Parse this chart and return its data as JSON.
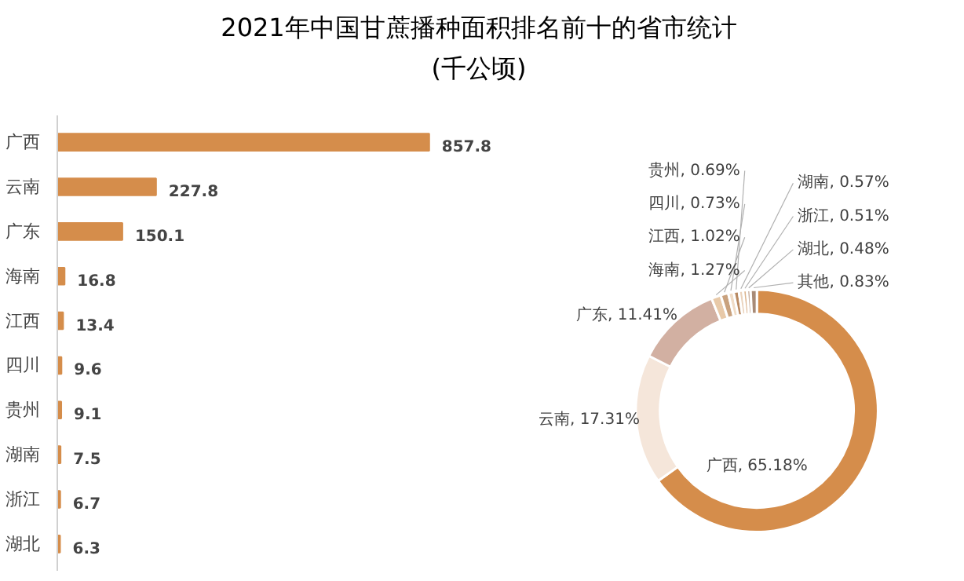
{
  "chart_data": [
    {
      "type": "bar",
      "title": "2021年中国甘蔗播种面积排名前十的省市统计",
      "subtitle": "(千公顷)",
      "orientation": "horizontal",
      "categories": [
        "广西",
        "云南",
        "广东",
        "海南",
        "江西",
        "四川",
        "贵州",
        "湖南",
        "浙江",
        "湖北"
      ],
      "values": [
        857.8,
        227.8,
        150.1,
        16.8,
        13.4,
        9.6,
        9.1,
        7.5,
        6.7,
        6.3
      ],
      "color": "#d58d4b",
      "data_labels": true
    },
    {
      "type": "donut",
      "categories": [
        "广西",
        "云南",
        "广东",
        "海南",
        "江西",
        "四川",
        "贵州",
        "湖南",
        "浙江",
        "湖北",
        "其他"
      ],
      "values": [
        65.18,
        17.31,
        11.41,
        1.27,
        1.02,
        0.73,
        0.69,
        0.57,
        0.51,
        0.48,
        0.83
      ],
      "colors": [
        "#d58d4b",
        "#f5e6da",
        "#d2b0a2",
        "#e8c9a8",
        "#c9a27e",
        "#f0dcc6",
        "#b98a62",
        "#ead2bb",
        "#dcb48e",
        "#c8b0a0",
        "#a88a76"
      ],
      "value_labels": [
        "65.18%",
        "17.31%",
        "11.41%",
        "1.27%",
        "1.02%",
        "0.73%",
        "0.69%",
        "0.57%",
        "0.51%",
        "0.48%",
        "0.83%"
      ]
    }
  ]
}
